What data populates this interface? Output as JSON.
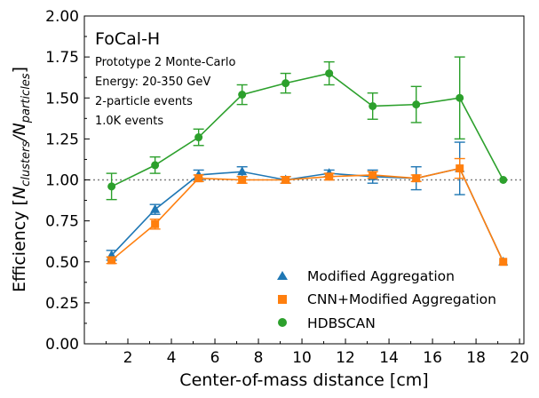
{
  "chart_data": {
    "type": "line",
    "xlabel": "Center-of-mass distance [cm]",
    "ylabel_prefix": "Efficiency [",
    "ylabel_num": "N",
    "ylabel_num_sub": "clusters",
    "ylabel_div": "/",
    "ylabel_den": "N",
    "ylabel_den_sub": "particles",
    "ylabel_suffix": "]",
    "xlim": [
      0,
      20.2
    ],
    "ylim": [
      0,
      2.0
    ],
    "xticks": [
      2,
      4,
      6,
      8,
      10,
      12,
      14,
      16,
      18,
      20
    ],
    "xtick_labels": [
      "2",
      "4",
      "6",
      "8",
      "10",
      "12",
      "14",
      "16",
      "18",
      "20"
    ],
    "yticks": [
      0,
      0.25,
      0.5,
      0.75,
      1.0,
      1.25,
      1.5,
      1.75,
      2.0
    ],
    "ytick_labels": [
      "0.00",
      "0.25",
      "0.50",
      "0.75",
      "1.00",
      "1.25",
      "1.50",
      "1.75",
      "2.00"
    ],
    "reference_line": {
      "y": 1.0,
      "style": "dotted",
      "color": "#808080"
    },
    "grid": false,
    "legend_position": "bottom-right",
    "annotations": {
      "title": "FoCal-H",
      "lines": [
        "Prototype 2 Monte-Carlo",
        "Energy: 20-350 GeV",
        "2-particle events",
        "1.0K events"
      ]
    },
    "series": [
      {
        "name": "Modified Aggregation",
        "marker": "triangle",
        "color": "#1f77b4",
        "x": [
          1.25,
          3.25,
          5.25,
          7.25,
          9.25,
          11.25,
          13.25,
          15.25,
          17.25,
          19.25
        ],
        "y": [
          0.54,
          0.82,
          1.03,
          1.05,
          1.0,
          1.04,
          1.02,
          1.01,
          1.07,
          0.5
        ],
        "yerr": [
          0.03,
          0.03,
          0.03,
          0.03,
          0.02,
          0.02,
          0.04,
          0.07,
          0.16,
          0.0
        ]
      },
      {
        "name": "CNN+Modified Aggregation",
        "marker": "square",
        "color": "#ff7f0e",
        "x": [
          1.25,
          3.25,
          5.25,
          7.25,
          9.25,
          11.25,
          13.25,
          15.25,
          17.25,
          19.25
        ],
        "y": [
          0.51,
          0.73,
          1.01,
          1.0,
          1.0,
          1.02,
          1.03,
          1.01,
          1.07,
          0.5
        ],
        "yerr": [
          0.02,
          0.03,
          0.02,
          0.02,
          0.02,
          0.02,
          0.02,
          0.02,
          0.06,
          0.0
        ]
      },
      {
        "name": "HDBSCAN",
        "marker": "circle",
        "color": "#2ca02c",
        "x": [
          1.25,
          3.25,
          5.25,
          7.25,
          9.25,
          11.25,
          13.25,
          15.25,
          17.25,
          19.25
        ],
        "y": [
          0.96,
          1.09,
          1.26,
          1.52,
          1.59,
          1.65,
          1.45,
          1.46,
          1.5,
          1.0
        ],
        "yerr": [
          0.08,
          0.05,
          0.05,
          0.06,
          0.06,
          0.07,
          0.08,
          0.11,
          0.25,
          0.0
        ]
      }
    ]
  }
}
